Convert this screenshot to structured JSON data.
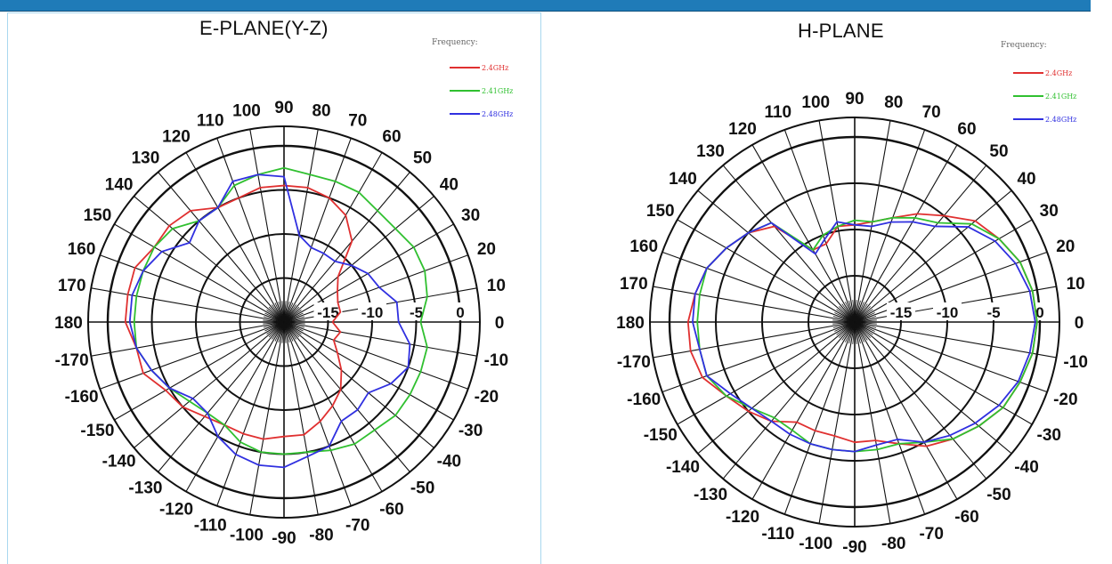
{
  "chart_data": [
    {
      "type": "line",
      "coordinate_system": "polar",
      "title": "E-PLANE(Y-Z)",
      "legend_title": "Frequency:",
      "legend_position": "top-right",
      "angular_tick_labels": [
        "0",
        "10",
        "20",
        "30",
        "40",
        "50",
        "60",
        "70",
        "80",
        "90",
        "100",
        "110",
        "120",
        "130",
        "140",
        "150",
        "160",
        "170",
        "180",
        "-170",
        "-160",
        "-150",
        "-140",
        "-130",
        "-120",
        "-110",
        "-100",
        "-90",
        "-80",
        "-70",
        "-60",
        "-50",
        "-40",
        "-30",
        "-20",
        "-10"
      ],
      "radial_tick_labels": [
        "-15",
        "-10",
        "-5",
        "0"
      ],
      "radial_range": [
        -20,
        0
      ],
      "grid": true,
      "angles": [
        0,
        10,
        20,
        30,
        40,
        50,
        60,
        70,
        80,
        90,
        100,
        110,
        120,
        130,
        140,
        150,
        160,
        170,
        180,
        190,
        200,
        210,
        220,
        230,
        240,
        250,
        260,
        270,
        280,
        290,
        300,
        310,
        320,
        330,
        340,
        350
      ],
      "series": [
        {
          "name": "2.4GHz",
          "color": "#e03030",
          "values": [
            -14.5,
            -13.5,
            -13.5,
            -13,
            -12,
            -8,
            -6,
            -5,
            -4.5,
            -4.5,
            -4.5,
            -5,
            -5,
            -3.5,
            -3,
            -3,
            -2,
            -2,
            -2,
            -3,
            -3,
            -4.5,
            -5,
            -6,
            -6.5,
            -6.5,
            -6.5,
            -7,
            -7,
            -8,
            -9,
            -10,
            -11.5,
            -13,
            -14,
            -13.5
          ]
        },
        {
          "name": "2.41GHz",
          "color": "#30c030",
          "values": [
            -4.5,
            -3.5,
            -3,
            -3,
            -3.5,
            -3.5,
            -3,
            -3,
            -3,
            -2.5,
            -3,
            -3.5,
            -5,
            -5,
            -3.5,
            -3,
            -3,
            -3,
            -3,
            -3,
            -4,
            -5,
            -6,
            -6.5,
            -6.5,
            -5.5,
            -5,
            -5,
            -5,
            -4.5,
            -4,
            -4,
            -3.5,
            -3.5,
            -3.5,
            -3.5
          ]
        },
        {
          "name": "2.48GHz",
          "color": "#3030e0",
          "values": [
            -7,
            -7,
            -8.5,
            -9,
            -10,
            -11,
            -11,
            -11,
            -10,
            -3.5,
            -3,
            -3,
            -5,
            -5,
            -6,
            -4,
            -3,
            -2.5,
            -2.5,
            -3,
            -4,
            -5,
            -6.5,
            -6.5,
            -5,
            -4,
            -3.5,
            -3.5,
            -4.5,
            -5,
            -7,
            -7,
            -7.5,
            -6,
            -5,
            -5.5
          ]
        }
      ]
    },
    {
      "type": "line",
      "coordinate_system": "polar",
      "title": "H-PLANE",
      "legend_title": "Frequency:",
      "legend_position": "top-right",
      "angular_tick_labels": [
        "0",
        "10",
        "20",
        "30",
        "40",
        "50",
        "60",
        "70",
        "80",
        "90",
        "100",
        "110",
        "120",
        "130",
        "140",
        "150",
        "160",
        "170",
        "180",
        "-170",
        "-160",
        "-150",
        "-140",
        "-130",
        "-120",
        "-110",
        "-100",
        "-90",
        "-80",
        "-70",
        "-60",
        "-50",
        "-40",
        "-30",
        "-20",
        "-10"
      ],
      "radial_tick_labels": [
        "-15",
        "-10",
        "-5",
        "0"
      ],
      "radial_range": [
        -20,
        0
      ],
      "grid": true,
      "angles": [
        0,
        10,
        20,
        30,
        40,
        50,
        60,
        70,
        80,
        90,
        100,
        110,
        120,
        130,
        140,
        150,
        160,
        170,
        180,
        190,
        200,
        210,
        220,
        230,
        240,
        250,
        260,
        270,
        280,
        290,
        300,
        310,
        320,
        330,
        340,
        350
      ],
      "series": [
        {
          "name": "2.4GHz",
          "color": "#e03030",
          "values": [
            -0.3,
            -0.5,
            -1,
            -2,
            -3,
            -5,
            -6.5,
            -8,
            -9,
            -9.5,
            -9.5,
            -11,
            -11,
            -6.5,
            -5,
            -4,
            -3,
            -2.5,
            -2,
            -2,
            -2.5,
            -4,
            -5,
            -6,
            -7.5,
            -7.5,
            -7.5,
            -7,
            -7,
            -6,
            -4.5,
            -3.5,
            -2.5,
            -1.5,
            -1,
            -0.5
          ]
        },
        {
          "name": "2.41GHz",
          "color": "#30c030",
          "values": [
            -0.3,
            -0.5,
            -1,
            -2,
            -3.5,
            -6,
            -7,
            -8,
            -9,
            -9,
            -9.5,
            -10,
            -11,
            -6,
            -5,
            -4,
            -3,
            -3,
            -3,
            -3,
            -3,
            -4,
            -5.5,
            -6.5,
            -6.5,
            -6,
            -6,
            -6,
            -6,
            -6,
            -5,
            -3.5,
            -2.5,
            -1.5,
            -1,
            -0.5
          ]
        },
        {
          "name": "2.48GHz",
          "color": "#3030e0",
          "values": [
            -0.5,
            -0.8,
            -1.5,
            -2.5,
            -4,
            -6.5,
            -7.5,
            -8.5,
            -9.5,
            -9.5,
            -9,
            -10.5,
            -11.5,
            -6,
            -5,
            -4,
            -3,
            -2.5,
            -2.5,
            -3,
            -3,
            -4.5,
            -5.5,
            -6,
            -6,
            -6,
            -6,
            -6,
            -6.5,
            -6.5,
            -5,
            -4,
            -3,
            -2,
            -1.2,
            -0.8
          ]
        }
      ]
    }
  ]
}
